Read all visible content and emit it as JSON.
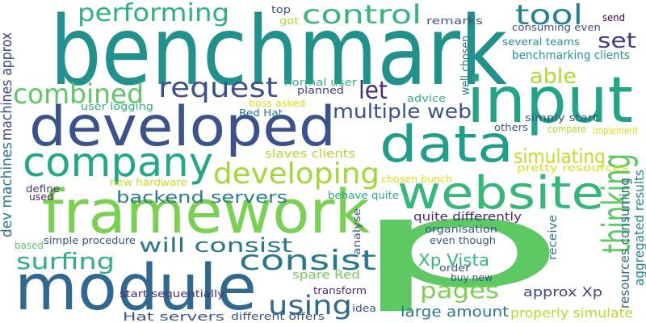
{
  "words": [
    {
      "text": "p",
      "color": "#5ec962"
    },
    {
      "text": "benchmark",
      "color": "#21918c"
    },
    {
      "text": "module",
      "color": "#31688e"
    },
    {
      "text": "framework",
      "color": "#7ad151"
    },
    {
      "text": "developed",
      "color": "#3b528b"
    },
    {
      "text": "input",
      "color": "#21a585"
    },
    {
      "text": "website",
      "color": "#35b779"
    },
    {
      "text": "data",
      "color": "#1f9e89"
    },
    {
      "text": "company",
      "color": "#22a884"
    },
    {
      "text": "developing",
      "color": "#a0da39"
    },
    {
      "text": "consist",
      "color": "#2a788e"
    },
    {
      "text": "control",
      "color": "#35b779"
    },
    {
      "text": "using",
      "color": "#31688e"
    },
    {
      "text": "thinking",
      "color": "#5ec962"
    },
    {
      "text": "combined",
      "color": "#5ec962"
    },
    {
      "text": "performing",
      "color": "#2db27d"
    },
    {
      "text": "tool",
      "color": "#26828e"
    },
    {
      "text": "request",
      "color": "#3b528b"
    },
    {
      "text": "able",
      "color": "#addc30"
    },
    {
      "text": "set",
      "color": "#443983"
    },
    {
      "text": "surfing",
      "color": "#2db27d"
    },
    {
      "text": "pages",
      "color": "#7ad151"
    },
    {
      "text": "let",
      "color": "#472d7b"
    },
    {
      "text": "will consist",
      "color": "#2a788e"
    },
    {
      "text": "multiple web",
      "color": "#3b528b"
    },
    {
      "text": "simulating",
      "color": "#bddf26"
    },
    {
      "text": "backend servers",
      "color": "#2a788e"
    },
    {
      "text": "Xp Vista",
      "color": "#35b779"
    },
    {
      "text": "large amount",
      "color": "#2a788e"
    },
    {
      "text": "approx Xp",
      "color": "#414487"
    },
    {
      "text": "properly simulate",
      "color": "#b5de2b"
    },
    {
      "text": "spare Red",
      "color": "#6ece58"
    },
    {
      "text": "Hat servers",
      "color": "#3b528b"
    },
    {
      "text": "benchmarking clients",
      "color": "#1f9a8a"
    },
    {
      "text": "machines approx",
      "color": "#3e4989"
    },
    {
      "text": "dev machines",
      "color": "#2a788e"
    },
    {
      "text": "aggregated results",
      "color": "#25848e"
    },
    {
      "text": "resources consuming",
      "color": "#31688e"
    },
    {
      "text": "consuming even",
      "color": "#3b528b"
    },
    {
      "text": "several teams",
      "color": "#21918c"
    },
    {
      "text": "user logging",
      "color": "#2db27d"
    },
    {
      "text": "slaves clients",
      "color": "#addc30"
    },
    {
      "text": "simply start",
      "color": "#3b528b"
    },
    {
      "text": "quite differently",
      "color": "#482878"
    },
    {
      "text": "behave quite",
      "color": "#22a884"
    },
    {
      "text": "pretty resources",
      "color": "#d2e21b"
    },
    {
      "text": "chosen bunch",
      "color": "#d8e219"
    },
    {
      "text": "new hardware",
      "color": "#c8e020"
    },
    {
      "text": "normal user",
      "color": "#2db27d"
    },
    {
      "text": "Red Hat",
      "color": "#2a788e"
    },
    {
      "text": "boss asked",
      "color": "#d8e219"
    },
    {
      "text": "advice",
      "color": "#2db27d"
    },
    {
      "text": "planned",
      "color": "#443983"
    },
    {
      "text": "remarks",
      "color": "#3b528b"
    },
    {
      "text": "send",
      "color": "#440154"
    },
    {
      "text": "top",
      "color": "#3b528b"
    },
    {
      "text": "got",
      "color": "#addc30"
    },
    {
      "text": "well chosen",
      "color": "#2a788e"
    },
    {
      "text": "others",
      "color": "#3b528b"
    },
    {
      "text": "compare",
      "color": "#addc30"
    },
    {
      "text": "implement",
      "color": "#d8e219"
    },
    {
      "text": "define",
      "color": "#443983"
    },
    {
      "text": "used",
      "color": "#482878"
    },
    {
      "text": "analyse",
      "color": "#3b528b"
    },
    {
      "text": "organisation",
      "color": "#3b528b"
    },
    {
      "text": "even though",
      "color": "#3b528b"
    },
    {
      "text": "receive",
      "color": "#2a788e"
    },
    {
      "text": "order",
      "color": "#3b528b"
    },
    {
      "text": "buy new",
      "color": "#3b528b"
    },
    {
      "text": "transform",
      "color": "#472d7b"
    },
    {
      "text": "idea",
      "color": "#3b528b"
    },
    {
      "text": "based",
      "color": "#5ec962"
    },
    {
      "text": "simple procedure",
      "color": "#3b528b"
    },
    {
      "text": "start sequentially",
      "color": "#472d7b"
    },
    {
      "text": "different offers",
      "color": "#3b528b"
    }
  ]
}
